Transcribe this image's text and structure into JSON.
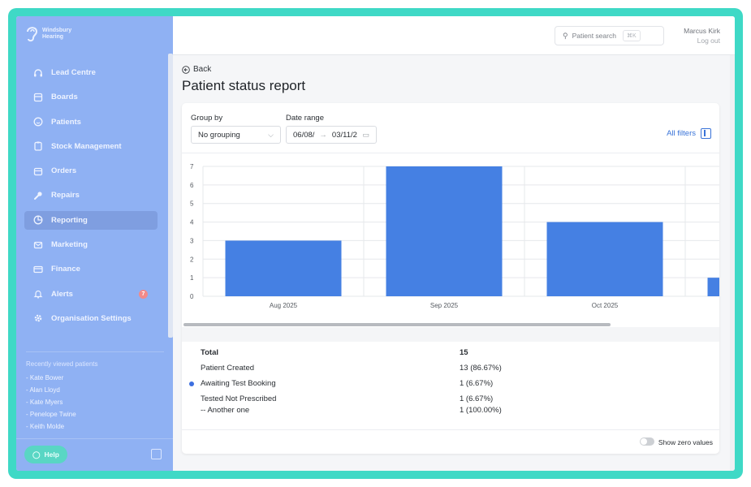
{
  "brand": {
    "line1": "Windsbury",
    "line2": "Hearing"
  },
  "sidebar": {
    "items": [
      {
        "label": "Lead Centre",
        "icon": "headset-icon"
      },
      {
        "label": "Boards",
        "icon": "board-icon"
      },
      {
        "label": "Patients",
        "icon": "smile-icon"
      },
      {
        "label": "Stock Management",
        "icon": "box-icon"
      },
      {
        "label": "Orders",
        "icon": "calendar-icon"
      },
      {
        "label": "Repairs",
        "icon": "wrench-icon"
      },
      {
        "label": "Reporting",
        "icon": "pie-icon",
        "active": true
      },
      {
        "label": "Marketing",
        "icon": "mail-icon"
      },
      {
        "label": "Finance",
        "icon": "card-icon"
      },
      {
        "label": "Alerts",
        "icon": "bell-icon",
        "badge": "7"
      },
      {
        "label": "Organisation Settings",
        "icon": "gear-icon"
      }
    ],
    "recent_title": "Recently viewed patients",
    "recent": [
      "- Kate Bower",
      "- Alan Lloyd",
      "- Kate Myers",
      "- Penelope Twine",
      "- Keith Molde"
    ],
    "help_label": "Help"
  },
  "topbar": {
    "search_placeholder": "Patient search",
    "search_shortcut": "⌘K",
    "user_name": "Marcus Kirk",
    "logout": "Log out"
  },
  "page": {
    "back": "Back",
    "title": "Patient status report",
    "group_by_label": "Group by",
    "group_by_value": "No grouping",
    "date_range_label": "Date range",
    "date_from": "06/08/",
    "date_to": "03/11/2",
    "all_filters": "All filters",
    "show_zero": "Show zero values"
  },
  "chart_data": {
    "type": "bar",
    "categories": [
      "Aug 2025",
      "Sep 2025",
      "Oct 2025",
      ""
    ],
    "values": [
      3,
      7,
      4,
      1
    ],
    "ylim": [
      0,
      7
    ],
    "yticks": [
      "0",
      "1",
      "2",
      "3",
      "4",
      "5",
      "6",
      "7"
    ],
    "grid": true,
    "color": "#4580e3"
  },
  "summary": {
    "total_label": "Total",
    "total_value": "15",
    "rows": [
      {
        "name": "Patient Created",
        "value": "13 (86.67%)",
        "dot": false
      },
      {
        "name": "Awaiting Test Booking",
        "value": "1 (6.67%)",
        "dot": true
      },
      {
        "name": "Tested Not Prescribed",
        "value": "1 (6.67%)",
        "dot": false
      },
      {
        "name": "-- Another one",
        "value": "1 (100.00%)",
        "dot": false
      }
    ]
  }
}
